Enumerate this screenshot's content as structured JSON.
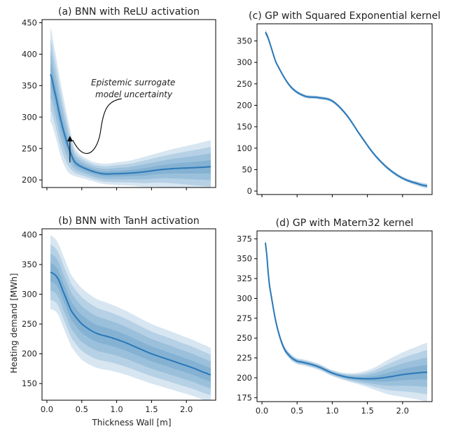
{
  "figure": {
    "xlabel": "Thickness Wall [m]",
    "ylabel": "Heating demand [MWh]",
    "band_color": "#1f77b4",
    "line_color": "#2a78b8"
  },
  "chart_data": [
    {
      "id": "a",
      "type": "line",
      "title": "(a) BNN with ReLU activation",
      "xlim": [
        -0.07,
        2.42
      ],
      "ylim": [
        188,
        455
      ],
      "xticks": [
        0.0,
        0.5,
        1.0,
        1.5,
        2.0
      ],
      "xtick_labels": [],
      "yticks": [
        200,
        250,
        300,
        350,
        400,
        450
      ],
      "ytick_labels": [
        "200",
        "250",
        "300",
        "350",
        "400",
        "450"
      ],
      "x": [
        0.05,
        0.1,
        0.2,
        0.3,
        0.4,
        0.6,
        0.8,
        1.0,
        1.2,
        1.4,
        1.6,
        1.8,
        2.0,
        2.2,
        2.35
      ],
      "mean": [
        368,
        345,
        295,
        255,
        228,
        216,
        210,
        210,
        211,
        213,
        216,
        218,
        219,
        220,
        221
      ],
      "spread": [
        75,
        68,
        58,
        42,
        22,
        16,
        16,
        18,
        20,
        24,
        27,
        31,
        35,
        39,
        42
      ],
      "annotation": {
        "text_lines": [
          "Epistemic surrogate",
          "model uncertainty"
        ],
        "arrow_tip": [
          0.35,
          268
        ]
      }
    },
    {
      "id": "c",
      "type": "line",
      "title": "(c) GP with Squared Exponential kernel",
      "xlim": [
        -0.07,
        2.42
      ],
      "ylim": [
        -8,
        390
      ],
      "xticks": [
        0.0,
        0.5,
        1.0,
        1.5,
        2.0
      ],
      "xtick_labels": [],
      "yticks": [
        0,
        50,
        100,
        150,
        200,
        250,
        300,
        350
      ],
      "ytick_labels": [
        "0",
        "50",
        "100",
        "150",
        "200",
        "250",
        "300",
        "350"
      ],
      "x": [
        0.05,
        0.2,
        0.4,
        0.6,
        0.8,
        1.0,
        1.2,
        1.4,
        1.6,
        1.8,
        2.0,
        2.2,
        2.35
      ],
      "mean": [
        370,
        300,
        245,
        222,
        218,
        210,
        178,
        130,
        85,
        52,
        30,
        18,
        12
      ],
      "spread": [
        7,
        4,
        4,
        4,
        4,
        4,
        4,
        4,
        4,
        4,
        4,
        5,
        6
      ]
    },
    {
      "id": "b",
      "type": "line",
      "title": "(b) BNN with TanH activation",
      "xlim": [
        -0.07,
        2.42
      ],
      "ylim": [
        122,
        410
      ],
      "xticks": [
        0.0,
        0.5,
        1.0,
        1.5,
        2.0
      ],
      "xtick_labels": [
        "0.0",
        "0.5",
        "1.0",
        "1.5",
        "2.0"
      ],
      "yticks": [
        150,
        200,
        250,
        300,
        350,
        400
      ],
      "ytick_labels": [
        "150",
        "200",
        "250",
        "300",
        "350",
        "400"
      ],
      "x": [
        0.05,
        0.15,
        0.25,
        0.35,
        0.5,
        0.7,
        0.9,
        1.1,
        1.3,
        1.5,
        1.7,
        1.9,
        2.1,
        2.3,
        2.35
      ],
      "mean": [
        337,
        328,
        300,
        272,
        250,
        235,
        228,
        220,
        210,
        200,
        192,
        184,
        176,
        167,
        165
      ],
      "spread": [
        62,
        60,
        60,
        60,
        60,
        58,
        56,
        54,
        52,
        50,
        49,
        48,
        47,
        46,
        45
      ]
    },
    {
      "id": "d",
      "type": "line",
      "title": "(d) GP with Matern32 kernel",
      "xlim": [
        -0.07,
        2.42
      ],
      "ylim": [
        170,
        385
      ],
      "xticks": [
        0.0,
        0.5,
        1.0,
        1.5,
        2.0
      ],
      "xtick_labels": [
        "0.0",
        "0.5",
        "1.0",
        "1.5",
        "2.0"
      ],
      "yticks": [
        175,
        200,
        225,
        250,
        275,
        300,
        325,
        350,
        375
      ],
      "ytick_labels": [
        "175",
        "200",
        "225",
        "250",
        "275",
        "300",
        "325",
        "350",
        "375"
      ],
      "x": [
        0.05,
        0.1,
        0.2,
        0.3,
        0.4,
        0.5,
        0.6,
        0.8,
        1.0,
        1.2,
        1.4,
        1.6,
        1.8,
        2.0,
        2.2,
        2.35
      ],
      "mean": [
        370,
        320,
        270,
        240,
        227,
        221,
        219,
        214,
        206,
        201,
        199,
        199,
        201,
        204,
        206,
        207
      ],
      "spread": [
        6,
        6,
        4,
        4,
        4,
        4,
        4,
        4,
        4,
        5,
        8,
        14,
        22,
        28,
        33,
        37
      ]
    }
  ]
}
